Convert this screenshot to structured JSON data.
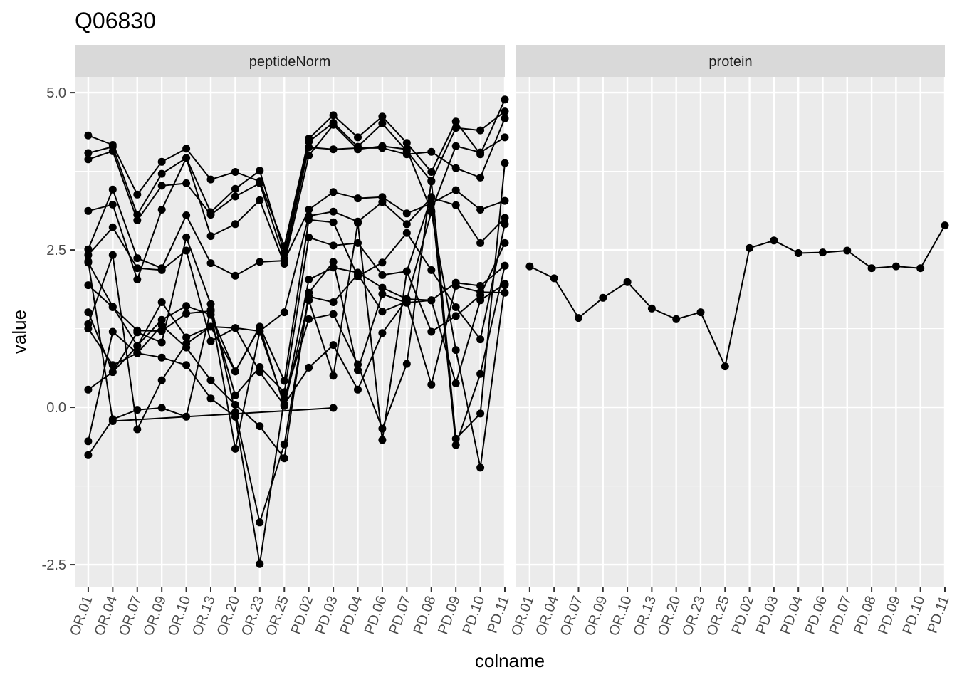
{
  "chart_data": {
    "type": "line",
    "title": "Q06830",
    "xlabel": "colname",
    "ylabel": "value",
    "ylim": [
      -2.85,
      5.25
    ],
    "y_ticks": [
      -2.5,
      0.0,
      2.5,
      5.0
    ],
    "y_tick_labels": [
      "-2.5",
      "0.0",
      "2.5",
      "5.0"
    ],
    "grid": true,
    "categories": [
      "OR.01",
      "OR.04",
      "OR.07",
      "OR.09",
      "OR.10",
      "OR.13",
      "OR.20",
      "OR.23",
      "OR.25",
      "PD.02",
      "PD.03",
      "PD.04",
      "PD.06",
      "PD.07",
      "PD.08",
      "PD.09",
      "PD.10",
      "PD.11"
    ],
    "panels": [
      {
        "label": "peptideNorm",
        "series": [
          {
            "values": [
              4.32,
              4.17,
              3.38,
              3.9,
              4.11,
              3.62,
              3.74,
              3.59,
              2.56,
              4.27,
              4.64,
              4.29,
              4.62,
              4.2,
              3.74,
              4.54,
              4.02,
              4.89
            ]
          },
          {
            "values": [
              4.04,
              4.14,
              3.06,
              3.71,
              3.96,
              3.1,
              3.47,
              3.76,
              2.45,
              4.22,
              4.52,
              4.14,
              4.51,
              4.07,
              3.59,
              4.44,
              4.4,
              4.7
            ]
          },
          {
            "values": [
              3.94,
              4.07,
              2.97,
              3.52,
              3.56,
              3.06,
              3.35,
              3.56,
              2.36,
              4.13,
              4.1,
              4.12,
              4.12,
              4.02,
              4.06,
              3.8,
              3.65,
              4.59
            ]
          },
          {
            "values": [
              3.12,
              3.22,
              2.03,
              3.14,
              3.96,
              2.72,
              2.91,
              3.29,
              2.28,
              4.0,
              4.49,
              4.1,
              4.15,
              4.1,
              3.12,
              4.15,
              4.05,
              4.29
            ]
          },
          {
            "values": [
              2.51,
              3.46,
              2.37,
              2.21,
              3.05,
              2.29,
              2.09,
              2.31,
              2.33,
              3.14,
              3.42,
              3.32,
              3.34,
              3.08,
              3.24,
              3.45,
              3.14,
              3.28
            ]
          },
          {
            "values": [
              2.42,
              2.86,
              2.21,
              2.18,
              2.49,
              1.05,
              1.26,
              1.21,
              1.51,
              3.04,
              3.11,
              2.95,
              3.26,
              2.91,
              3.33,
              3.21,
              2.61,
              3.01
            ]
          },
          {
            "values": [
              2.3,
              1.6,
              0.98,
              1.39,
              1.61,
              1.47,
              0.57,
              1.28,
              0.42,
              2.98,
              2.94,
              2.08,
              2.3,
              2.77,
              2.18,
              1.59,
              1.08,
              2.91
            ]
          },
          {
            "values": [
              1.94,
              1.59,
              1.22,
              1.21,
              1.49,
              1.53,
              0.19,
              0.64,
              0.24,
              2.7,
              2.57,
              2.61,
              2.1,
              2.16,
              1.2,
              1.45,
              1.78,
              2.61
            ]
          },
          {
            "values": [
              1.51,
              0.56,
              0.97,
              1.67,
              1.11,
              1.28,
              1.26,
              0.56,
              0.03,
              2.03,
              2.22,
              2.14,
              1.9,
              1.72,
              1.7,
              1.98,
              1.93,
              2.25
            ]
          },
          {
            "values": [
              1.25,
              0.67,
              0.86,
              1.3,
              0.95,
              0.43,
              0.04,
              -0.3,
              -0.81,
              1.82,
              2.31,
              0.59,
              1.8,
              1.66,
              1.7,
              0.38,
              1.7,
              1.96
            ]
          },
          {
            "values": [
              0.28,
              0.56,
              1.19,
              1.03,
              2.7,
              1.64,
              -0.08,
              -1.83,
              -0.59,
              1.76,
              1.67,
              2.11,
              1.52,
              1.68,
              0.36,
              1.93,
              1.83,
              1.82
            ]
          },
          {
            "values": [
              -0.54,
              1.2,
              0.86,
              0.79,
              0.67,
              0.14,
              -0.15,
              -2.49,
              0.14,
              1.4,
              1.48,
              0.68,
              -0.34,
              0.69,
              3.6,
              -0.5,
              -0.1,
              3.88
            ]
          },
          {
            "values": [
              -0.76,
              -0.19,
              -0.04,
              -0.01,
              -0.15,
              1.55,
              -0.66,
              1.2,
              0.05,
              0.63,
              0.99,
              0.28,
              1.18,
              1.71,
              3.1,
              0.91,
              -0.96,
              1.94
            ]
          },
          {
            "values": [
              1.32,
              2.42,
              -0.35,
              0.43,
              1.01,
              1.28,
              0.57,
              1.27,
              0.02,
              1.7,
              0.5,
              2.93,
              -0.52,
              2.16,
              3.34,
              -0.6,
              0.53,
              2.25
            ]
          },
          {
            "values": [
              2.32,
              -0.22,
              null,
              null,
              null,
              null,
              null,
              null,
              null,
              null,
              -0.01,
              null,
              null,
              null,
              null,
              null,
              null,
              null
            ]
          }
        ]
      },
      {
        "label": "protein",
        "series": [
          {
            "values": [
              2.24,
              2.05,
              1.42,
              1.74,
              1.99,
              1.57,
              1.4,
              1.51,
              0.65,
              2.53,
              2.65,
              2.45,
              2.46,
              2.49,
              2.21,
              2.24,
              2.21,
              2.89
            ]
          }
        ]
      }
    ]
  }
}
